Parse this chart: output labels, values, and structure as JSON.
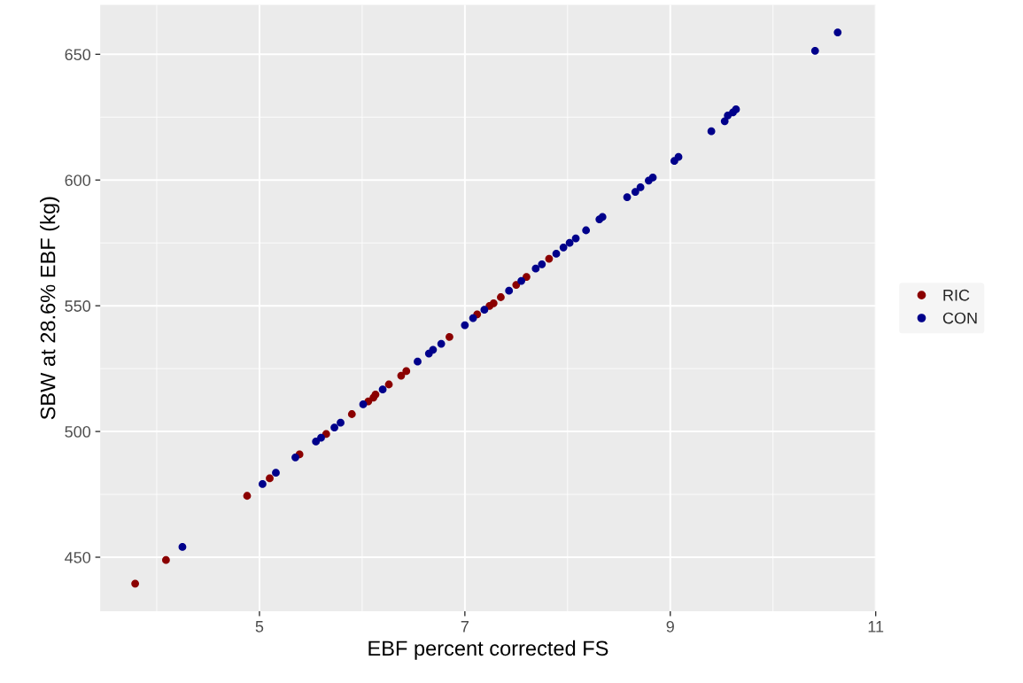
{
  "chart_data": {
    "type": "scatter",
    "xlabel": "EBF percent corrected FS",
    "ylabel": "SBW at 28.6% EBF (kg)",
    "xlim": [
      3.45,
      11.0
    ],
    "ylim": [
      428.5,
      669.7
    ],
    "xticks": [
      5,
      7,
      9,
      11
    ],
    "yticks": [
      450,
      500,
      550,
      600,
      650
    ],
    "grid": true,
    "legend": "right",
    "marker": "circle",
    "series": [
      {
        "name": "RIC",
        "color": "#8b0000",
        "x": [
          3.79,
          4.09,
          4.88,
          5.1,
          5.39,
          5.65,
          5.9,
          6.06,
          6.11,
          6.13,
          6.26,
          6.38,
          6.43,
          6.85,
          7.12,
          7.24,
          7.28,
          7.35,
          7.5,
          7.6,
          7.82
        ],
        "values": [
          439.5,
          448.9,
          474.4,
          481.4,
          490.9,
          499.0,
          506.9,
          512.0,
          513.5,
          514.7,
          518.7,
          522.2,
          524.0,
          537.6,
          546.6,
          549.9,
          551.0,
          553.4,
          558.3,
          561.5,
          568.7
        ]
      },
      {
        "name": "CON",
        "color": "#00008b",
        "x": [
          4.25,
          5.03,
          5.16,
          5.35,
          5.55,
          5.6,
          5.73,
          5.79,
          6.01,
          6.2,
          6.54,
          6.65,
          6.69,
          6.77,
          7.0,
          7.08,
          7.19,
          7.43,
          7.55,
          7.69,
          7.75,
          7.89,
          7.96,
          8.02,
          8.08,
          8.18,
          8.31,
          8.34,
          8.58,
          8.66,
          8.71,
          8.79,
          8.83,
          9.04,
          9.08,
          9.4,
          9.53,
          9.56,
          9.61,
          9.64,
          10.41,
          10.63
        ],
        "values": [
          454.1,
          479.1,
          483.6,
          489.7,
          496.0,
          497.5,
          501.6,
          503.5,
          510.8,
          516.7,
          527.8,
          531.0,
          532.5,
          534.9,
          542.3,
          545.1,
          548.4,
          556.0,
          559.9,
          564.8,
          566.5,
          570.7,
          573.2,
          575.0,
          576.8,
          580.0,
          584.4,
          585.3,
          593.2,
          595.3,
          597.1,
          599.8,
          601.0,
          607.6,
          609.2,
          619.4,
          623.4,
          625.7,
          626.9,
          628.1,
          651.4,
          658.7
        ]
      }
    ]
  }
}
